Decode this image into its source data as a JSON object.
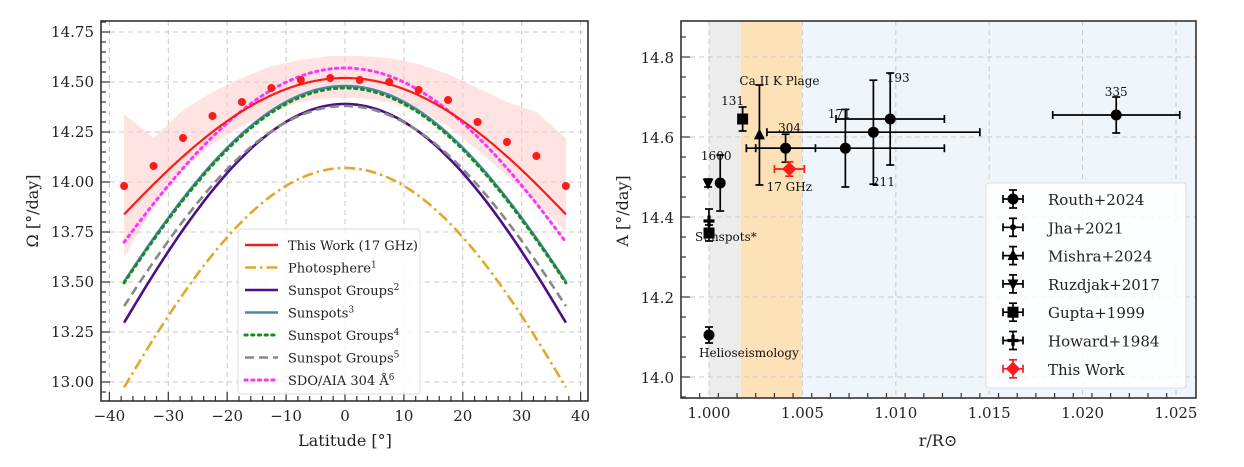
{
  "chart_data": [
    {
      "type": "line",
      "title": "",
      "xlabel": "Latitude [°]",
      "ylabel": "Ω [°/day]",
      "xlim": [
        -40,
        41
      ],
      "ylim": [
        12.92,
        14.8
      ],
      "xticks": [
        -40,
        -30,
        -20,
        -10,
        0,
        10,
        20,
        30,
        40
      ],
      "xtick_labels": [
        "−40",
        "−30",
        "−20",
        "−10",
        "0",
        "10",
        "20",
        "30",
        "40"
      ],
      "yticks": [
        13.0,
        13.25,
        13.5,
        13.75,
        14.0,
        14.25,
        14.5,
        14.75
      ],
      "ytick_labels": [
        "13.00",
        "13.25",
        "13.50",
        "13.75",
        "14.00",
        "14.25",
        "14.50",
        "14.75"
      ],
      "grid": true,
      "legend_position": "bottom-center",
      "x": [
        -37.5,
        -32.5,
        -27.5,
        -22.5,
        -17.5,
        -12.5,
        -7.5,
        -2.5,
        2.5,
        7.5,
        12.5,
        17.5,
        22.5,
        27.5,
        32.5,
        37.5
      ],
      "observed_points": {
        "name": "This Work (17 GHz) data",
        "color": "#ff1a1a",
        "values": [
          13.98,
          14.08,
          14.22,
          14.33,
          14.4,
          14.47,
          14.51,
          14.52,
          14.51,
          14.5,
          14.46,
          14.41,
          14.3,
          14.2,
          14.13,
          13.98
        ],
        "band_upper": [
          14.34,
          14.22,
          14.36,
          14.45,
          14.52,
          14.58,
          14.61,
          14.63,
          14.63,
          14.62,
          14.59,
          14.54,
          14.47,
          14.4,
          14.35,
          14.22
        ],
        "band_lower": [
          13.62,
          13.88,
          14.06,
          14.19,
          14.28,
          14.35,
          14.4,
          14.42,
          14.42,
          14.4,
          14.35,
          14.28,
          14.16,
          14.03,
          13.9,
          13.75
        ]
      },
      "series": [
        {
          "name": "This Work (17 GHz)",
          "label_sup": "",
          "color": "#ff1a1a",
          "style": "solid",
          "A": 14.52,
          "B": -1.84,
          "C": 0
        },
        {
          "name": "Photosphere",
          "label_sup": "1",
          "color": "#e0a830",
          "style": "dashdot",
          "A": 14.07,
          "B": -2.96,
          "C": 0
        },
        {
          "name": "Sunspot Groups",
          "label_sup": "2",
          "color": "#4b0f8a",
          "style": "solid",
          "A": 14.39,
          "B": -2.95,
          "C": 0
        },
        {
          "name": "Sunspots",
          "label_sup": "3",
          "color": "#4a86b0",
          "style": "solid",
          "A": 14.48,
          "B": -2.64,
          "C": 0
        },
        {
          "name": "Sunspot Groups",
          "label_sup": "4",
          "color": "#1a8a1a",
          "style": "dotted",
          "A": 14.47,
          "B": -2.63,
          "C": 0
        },
        {
          "name": "Sunspot Groups",
          "label_sup": "5",
          "color": "#888888",
          "style": "dashed",
          "A": 14.38,
          "B": -2.7,
          "C": 0
        },
        {
          "name": "SDO/AIA 304 Å",
          "label_sup": "6",
          "color": "#ff33ff",
          "style": "dotted",
          "A": 14.57,
          "B": -2.35,
          "C": 0
        }
      ]
    },
    {
      "type": "scatter",
      "title": "",
      "xlabel": "r/R⊙",
      "ylabel": "A [°/day]",
      "xlim": [
        0.9984,
        1.0264
      ],
      "ylim": [
        13.95,
        14.89
      ],
      "xticks": [
        1.0,
        1.005,
        1.01,
        1.015,
        1.02,
        1.025
      ],
      "xtick_labels": [
        "1.000",
        "1.005",
        "1.010",
        "1.015",
        "1.020",
        "1.025"
      ],
      "yticks": [
        14.0,
        14.2,
        14.4,
        14.6,
        14.8
      ],
      "ytick_labels": [
        "14.0",
        "14.2",
        "14.4",
        "14.6",
        "14.8"
      ],
      "grid": true,
      "legend_position": "bottom-right",
      "bands": [
        {
          "x0": 1.0,
          "x1": 1.0017,
          "color": "#ececec"
        },
        {
          "x0": 1.0017,
          "x1": 1.005,
          "color": "#fde2b8"
        },
        {
          "x0": 1.005,
          "x1": 1.0264,
          "color": "#eef6fc"
        }
      ],
      "legend": [
        {
          "name": "Routh+2024",
          "marker": "circle",
          "color": "#000000"
        },
        {
          "name": "Jha+2021",
          "marker": "small-dot",
          "color": "#000000"
        },
        {
          "name": "Mishra+2024",
          "marker": "triangle-up",
          "color": "#000000"
        },
        {
          "name": "Ruzdjak+2017",
          "marker": "triangle-down",
          "color": "#000000"
        },
        {
          "name": "Gupta+1999",
          "marker": "square",
          "color": "#000000"
        },
        {
          "name": "Howard+1984",
          "marker": "plus",
          "color": "#000000"
        },
        {
          "name": "This  Work",
          "marker": "diamond",
          "color": "#ff1a1a"
        }
      ],
      "points": [
        {
          "source": "Routh+2024",
          "label": "Helioseismology",
          "marker": "circle",
          "x": 1.0,
          "y": 14.105,
          "yerr": 0.02,
          "xerr": 0
        },
        {
          "source": "Gupta+1999",
          "label": "",
          "marker": "square",
          "x": 1.0,
          "y": 14.36,
          "yerr": 0.02,
          "xerr": 0
        },
        {
          "source": "Howard+1984",
          "label": "Sunspots*",
          "marker": "plus",
          "x": 1.0,
          "y": 14.39,
          "yerr": 0.03,
          "xerr": 0
        },
        {
          "source": "Ruzdjak+2017",
          "label": "",
          "marker": "triangle-down",
          "x": 0.99995,
          "y": 14.485,
          "yerr": 0.01,
          "xerr": 0
        },
        {
          "source": "Jha+2021",
          "label": "1600",
          "marker": "circle",
          "x": 1.0006,
          "y": 14.485,
          "yerr": 0.07,
          "xerr": 0
        },
        {
          "source": "Routh+2024",
          "label": "131",
          "marker": "square",
          "x": 1.0018,
          "y": 14.645,
          "yerr": 0.03,
          "xerr": 0
        },
        {
          "source": "Mishra+2024",
          "label": "Ca  II  K  Plage",
          "marker": "triangle-up",
          "x": 1.0027,
          "y": 14.605,
          "yerr": 0.125,
          "xerr": 0
        },
        {
          "source": "Routh+2024",
          "label": "304",
          "marker": "circle",
          "x": 1.0041,
          "y": 14.572,
          "yerr": 0.035,
          "xerr": 0.0016
        },
        {
          "source": "This Work",
          "label": "17  GHz",
          "marker": "diamond",
          "x": 1.0043,
          "y": 14.52,
          "yerr": 0.018,
          "xerr": 0.0008
        },
        {
          "source": "Routh+2024",
          "label": "171",
          "marker": "circle",
          "x": 1.0073,
          "y": 14.572,
          "yerr": 0.097,
          "xerr": 0.0053
        },
        {
          "source": "Routh+2024",
          "label": "211",
          "marker": "circle",
          "x": 1.0088,
          "y": 14.612,
          "yerr": 0.13,
          "xerr": 0.0057
        },
        {
          "source": "Routh+2024",
          "label": "193",
          "marker": "circle",
          "x": 1.0097,
          "y": 14.645,
          "yerr": 0.115,
          "xerr": 0.0029
        },
        {
          "source": "Routh+2024",
          "label": "335",
          "marker": "circle",
          "x": 1.0218,
          "y": 14.655,
          "yerr": 0.045,
          "xerr": 0.0034
        }
      ]
    }
  ]
}
